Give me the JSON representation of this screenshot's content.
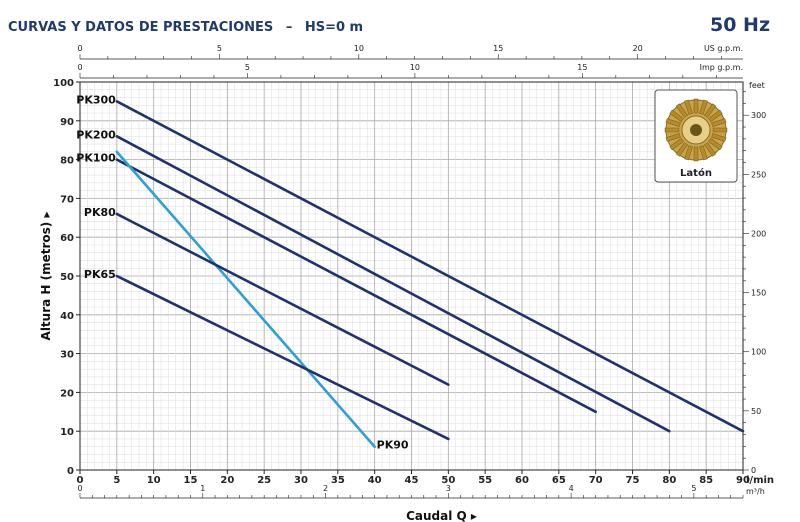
{
  "header": {
    "title": "CURVAS Y DATOS DE PRESTACIONES",
    "dash": "–",
    "condition": "HS=0 m",
    "frequency": "50 Hz"
  },
  "colors": {
    "title": "#1f3a6e",
    "pk_series": "#1f3270",
    "pk90_series": "#2f9fd8",
    "grid": "#c8c8c8",
    "inset_border": "#555555"
  },
  "inset": {
    "label": "Latón",
    "icon": "brass-impeller-icon"
  },
  "chart_data": {
    "type": "line",
    "title": "CURVAS Y DATOS DE PRESTACIONES – HS=0 m",
    "ylabel": "Altura H (metros)",
    "xlabel": "Caudal Q",
    "x_unit": "l/min",
    "ylim": [
      0,
      100
    ],
    "xlim": [
      0,
      90
    ],
    "y_ticks": [
      0,
      10,
      20,
      30,
      40,
      50,
      60,
      70,
      80,
      90,
      100
    ],
    "x_ticks": [
      0,
      5,
      10,
      15,
      20,
      25,
      30,
      35,
      40,
      45,
      50,
      55,
      60,
      65,
      70,
      75,
      80,
      85,
      90
    ],
    "right_axis": {
      "unit": "feet",
      "ticks": [
        0,
        50,
        100,
        150,
        200,
        250,
        300
      ]
    },
    "top_axis_us": {
      "unit": "US g.p.m.",
      "ticks": [
        0,
        5,
        10,
        15,
        20
      ]
    },
    "top_axis_imp": {
      "unit": "Imp g.p.m.",
      "ticks": [
        0,
        5,
        10,
        15
      ]
    },
    "bottom_axis_m3h": {
      "unit": "m³/h",
      "ticks": [
        0,
        1,
        2,
        3,
        4,
        5
      ]
    },
    "grid": true,
    "series": [
      {
        "name": "PK300",
        "x": [
          5,
          90
        ],
        "y": [
          95,
          10
        ]
      },
      {
        "name": "PK200",
        "x": [
          5,
          80
        ],
        "y": [
          86,
          10
        ]
      },
      {
        "name": "PK100",
        "x": [
          5,
          70
        ],
        "y": [
          80,
          15
        ]
      },
      {
        "name": "PK90",
        "x": [
          5,
          40
        ],
        "y": [
          82,
          6
        ]
      },
      {
        "name": "PK80",
        "x": [
          5,
          50
        ],
        "y": [
          66,
          22
        ]
      },
      {
        "name": "PK65",
        "x": [
          5,
          50
        ],
        "y": [
          50,
          8
        ]
      }
    ]
  }
}
